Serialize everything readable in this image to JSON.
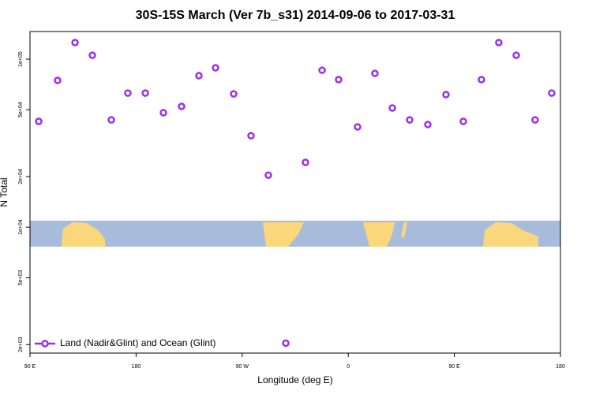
{
  "chart_data": {
    "type": "scatter",
    "title": "30S-15S March (Ver 7b_s31)   2014-09-06 to 2017-03-31",
    "x_label": "Longitude (deg E)",
    "y_label": "N Total",
    "log_y": true,
    "xlim": [
      90,
      540
    ],
    "ylim": [
      1780,
      146000
    ],
    "xticks": [
      {
        "value": 90,
        "label": "90 E"
      },
      {
        "value": 180,
        "label": "180"
      },
      {
        "value": 270,
        "label": "90 W"
      },
      {
        "value": 360,
        "label": "0"
      },
      {
        "value": 450,
        "label": "90 E"
      },
      {
        "value": 540,
        "label": "180"
      }
    ],
    "yticks": [
      {
        "value": 2000,
        "label": "2e+03"
      },
      {
        "value": 5000,
        "label": "5e+03"
      },
      {
        "value": 10000,
        "label": "1e+04"
      },
      {
        "value": 20000,
        "label": "2e+04"
      },
      {
        "value": 50000,
        "label": "5e+04"
      },
      {
        "value": 100000,
        "label": "1e+05"
      }
    ],
    "legend_position": "bottom-left",
    "series": [
      {
        "name": "Land (Nadir&Glint) and Ocean (Glint)",
        "color": "#9b2ff0",
        "x": [
          97.4,
          113.4,
          128.2,
          142.9,
          159,
          173,
          187.8,
          203.2,
          218.6,
          233.3,
          247.4,
          262.8,
          277.5,
          292.2,
          307,
          323.7,
          337.8,
          351.8,
          367.9,
          382.6,
          397.4,
          412.1,
          427.5,
          442.9,
          457.6,
          473,
          487.7,
          502.5,
          518.5,
          532.6
        ],
        "values": [
          42600,
          74700,
          125500,
          105500,
          43500,
          62800,
          62800,
          48000,
          52300,
          79700,
          88800,
          62100,
          35000,
          20400,
          2040,
          24300,
          85900,
          75500,
          39500,
          82300,
          51200,
          43500,
          40800,
          61500,
          42600,
          75500,
          125500,
          105500,
          43500,
          62800
        ]
      }
    ]
  }
}
